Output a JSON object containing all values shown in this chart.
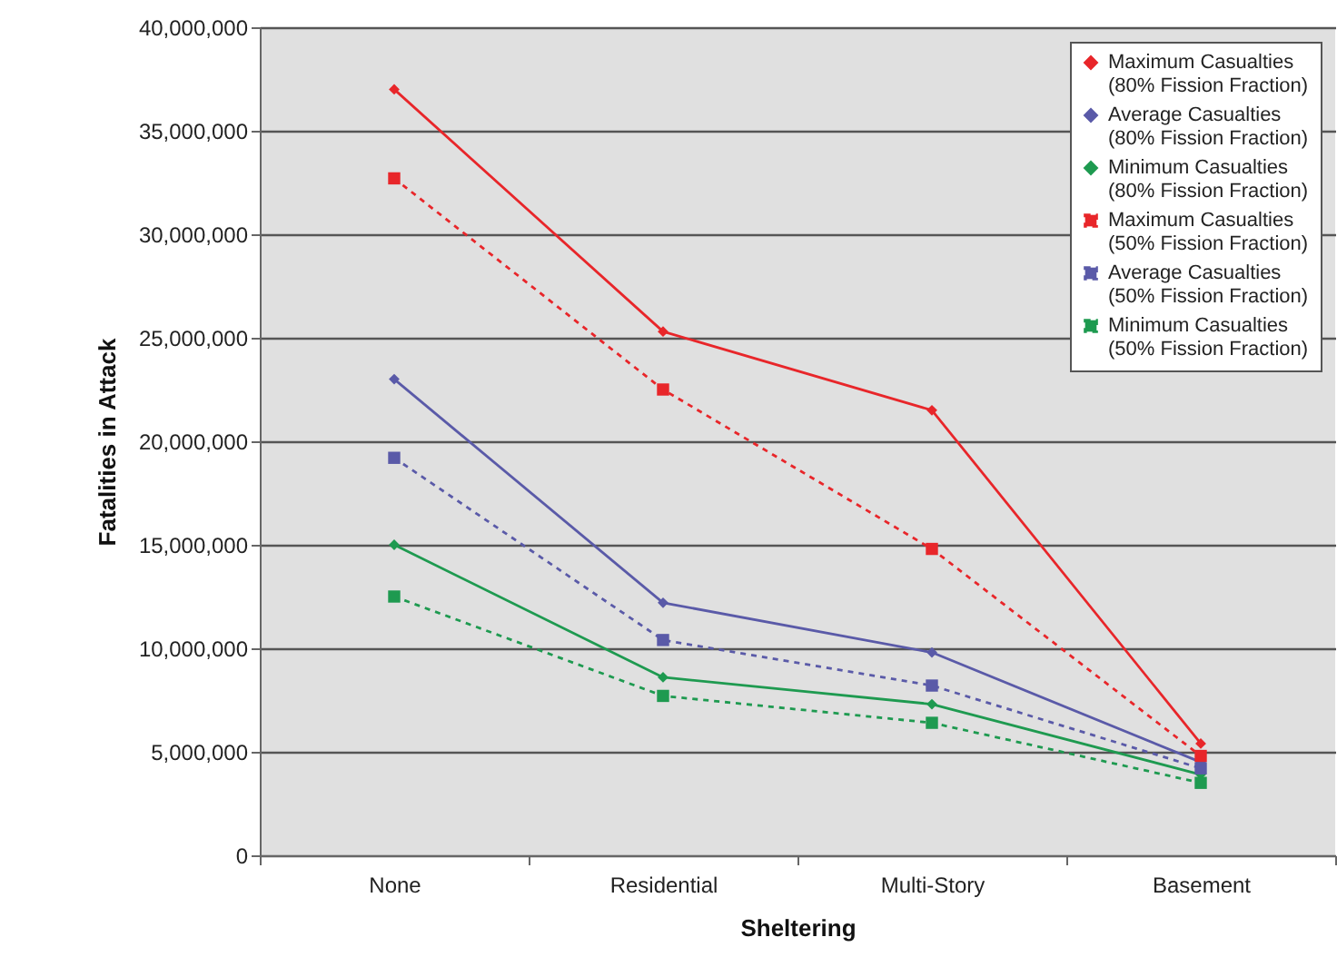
{
  "chart_data": {
    "type": "line",
    "xlabel": "Sheltering",
    "ylabel": "Fatalities in Attack",
    "categories": [
      "None",
      "Residential",
      "Multi-Story",
      "Basement"
    ],
    "series": [
      {
        "name": "Maximum Casualties (80% Fission Fraction)",
        "color": "#e8262a",
        "marker": "diamond",
        "line_style": "solid",
        "values": [
          37000000,
          25300000,
          21500000,
          5400000
        ]
      },
      {
        "name": "Average Casualties (80% Fission Fraction)",
        "color": "#5a5aa8",
        "marker": "diamond",
        "line_style": "solid",
        "values": [
          23000000,
          12200000,
          9800000,
          4500000
        ]
      },
      {
        "name": "Minimum Casualties (80% Fission Fraction)",
        "color": "#1e9a50",
        "marker": "diamond",
        "line_style": "solid",
        "values": [
          15000000,
          8600000,
          7300000,
          3900000
        ]
      },
      {
        "name": "Maximum Casualties (50% Fission Fraction)",
        "color": "#e8262a",
        "marker": "square",
        "line_style": "dashed",
        "values": [
          32700000,
          22500000,
          14800000,
          4800000
        ]
      },
      {
        "name": "Average Casualties (50% Fission Fraction)",
        "color": "#5a5aa8",
        "marker": "square",
        "line_style": "dashed",
        "values": [
          19200000,
          10400000,
          8200000,
          4200000
        ]
      },
      {
        "name": "Minimum Casualties (50% Fission Fraction)",
        "color": "#1e9a50",
        "marker": "square",
        "line_style": "dashed",
        "values": [
          12500000,
          7700000,
          6400000,
          3500000
        ]
      }
    ],
    "ylim": [
      0,
      40000000
    ],
    "yticks": [
      0,
      {
        "value": 5000000,
        "label": "5,000,000"
      },
      {
        "value": 10000000,
        "label": "10,000,000"
      },
      {
        "value": 15000000,
        "label": "15,000,000"
      },
      {
        "value": 20000000,
        "label": "20,000,000"
      },
      {
        "value": 25000000,
        "label": "25,000,000"
      },
      {
        "value": 30000000,
        "label": "30,000,000"
      },
      {
        "value": 35000000,
        "label": "35,000,000"
      },
      {
        "value": 40000000,
        "label": "40,000,000"
      }
    ],
    "grid": "y",
    "legend": "top right"
  }
}
